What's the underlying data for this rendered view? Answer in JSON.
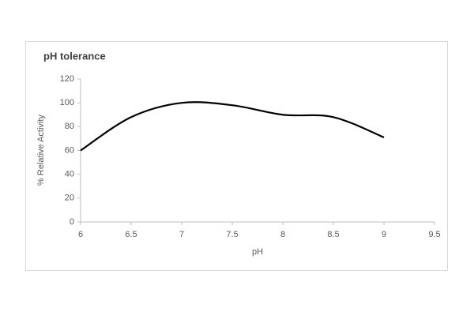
{
  "chart_data": {
    "type": "line",
    "title": "pH tolerance",
    "x_label": "pH",
    "y_label": "% Relative Activity",
    "x": [
      6,
      6.5,
      7,
      7.5,
      8,
      8.5,
      9
    ],
    "series": [
      {
        "color": "#000000",
        "values": [
          60,
          88,
          100,
          98,
          90,
          88,
          71
        ]
      }
    ],
    "smooth": true,
    "xlim": [
      6,
      9.5
    ],
    "xticks": [
      6,
      6.5,
      7,
      7.5,
      8,
      8.5,
      9,
      9.5
    ],
    "ylim": [
      0,
      120
    ],
    "yticks": [
      0,
      20,
      40,
      60,
      80,
      100,
      120
    ],
    "grid": false
  }
}
